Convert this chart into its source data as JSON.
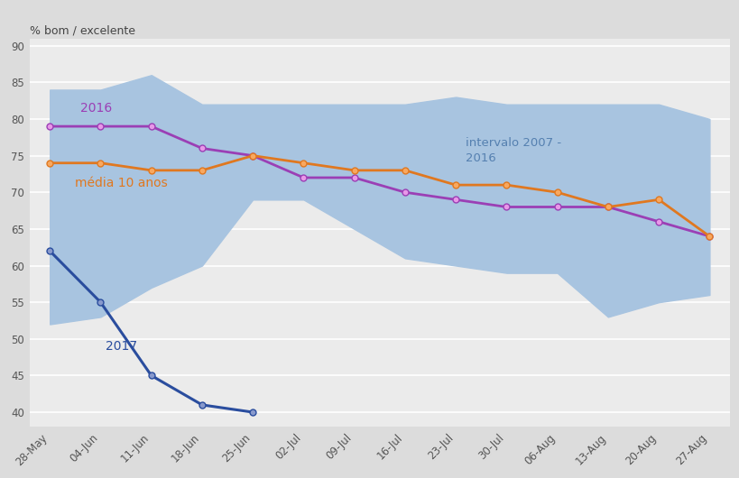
{
  "x_labels": [
    "28-May",
    "04-Jun",
    "11-Jun",
    "18-Jun",
    "25-Jun",
    "02-Jul",
    "09-Jul",
    "16-Jul",
    "23-Jul",
    "30-Jul",
    "06-Aug",
    "13-Aug",
    "20-Aug",
    "27-Aug"
  ],
  "line_2016": [
    79,
    79,
    79,
    76,
    75,
    72,
    72,
    70,
    69,
    68,
    68,
    68,
    66,
    64
  ],
  "line_media": [
    74,
    74,
    73,
    73,
    75,
    74,
    73,
    73,
    71,
    71,
    70,
    68,
    69,
    64
  ],
  "line_2017": [
    62,
    55,
    45,
    41,
    40,
    null,
    null,
    null,
    null,
    null,
    null,
    null,
    null,
    null
  ],
  "band_upper": [
    84,
    84,
    86,
    82,
    82,
    82,
    82,
    82,
    83,
    82,
    82,
    82,
    82,
    80
  ],
  "band_lower": [
    52,
    53,
    57,
    60,
    69,
    69,
    65,
    61,
    60,
    59,
    59,
    53,
    55,
    56
  ],
  "ylabel": "% bom / excelente",
  "ylim": [
    38,
    91
  ],
  "yticks": [
    40,
    45,
    50,
    55,
    60,
    65,
    70,
    75,
    80,
    85,
    90
  ],
  "band_color": "#a8c4e0",
  "band_alpha": 1.0,
  "color_2016": "#9b3fb5",
  "color_media": "#e07820",
  "color_2017": "#2a4d9e",
  "marker_2016": "#e898e8",
  "marker_media": "#f8a860",
  "marker_2017": "#8899cc",
  "label_2016": "2016",
  "label_media": "média 10 anos",
  "label_2017": "2017",
  "label_intervalo": "intervalo 2007 -\n2016",
  "bg_color": "#dcdcdc",
  "plot_bg_color": "#ebebeb"
}
